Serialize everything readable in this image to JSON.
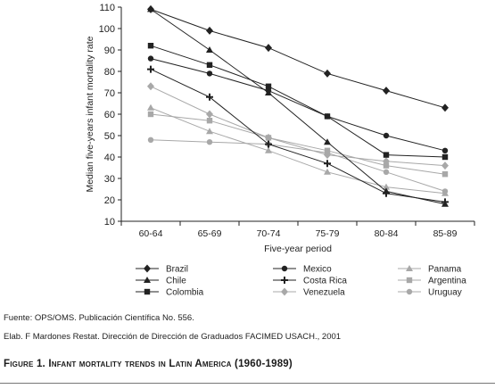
{
  "chart_data": {
    "type": "line",
    "categories": [
      "60-64",
      "65-69",
      "70-74",
      "75-79",
      "80-84",
      "85-89"
    ],
    "xlabel": "Five-year period",
    "ylabel": "Median five-years infant mortality rate",
    "ylim": [
      10,
      110
    ],
    "yticks": [
      10,
      20,
      30,
      40,
      50,
      60,
      70,
      80,
      90,
      100,
      110
    ],
    "grid": false,
    "legend_position": "bottom",
    "series": [
      {
        "name": "Brazil",
        "marker": "diamond",
        "color": "#222222",
        "values": [
          109,
          99,
          91,
          79,
          71,
          63
        ]
      },
      {
        "name": "Chile",
        "marker": "triangle",
        "color": "#222222",
        "values": [
          109,
          90,
          70,
          47,
          24,
          18
        ]
      },
      {
        "name": "Colombia",
        "marker": "square",
        "color": "#222222",
        "values": [
          92,
          83,
          73,
          59,
          41,
          40
        ]
      },
      {
        "name": "Mexico",
        "marker": "circle",
        "color": "#222222",
        "values": [
          86,
          79,
          71,
          59,
          50,
          43
        ]
      },
      {
        "name": "Costa Rica",
        "marker": "plus",
        "color": "#222222",
        "values": [
          81,
          68,
          46,
          37,
          23,
          19
        ]
      },
      {
        "name": "Venezuela",
        "marker": "diamond",
        "color": "#a8a8a8",
        "values": [
          73,
          60,
          49,
          41,
          38,
          36
        ]
      },
      {
        "name": "Panama",
        "marker": "triangle",
        "color": "#a8a8a8",
        "values": [
          63,
          52,
          43,
          33,
          26,
          23
        ]
      },
      {
        "name": "Argentina",
        "marker": "square",
        "color": "#a8a8a8",
        "values": [
          60,
          57,
          49,
          43,
          36,
          32
        ]
      },
      {
        "name": "Uruguay",
        "marker": "circle",
        "color": "#a8a8a8",
        "values": [
          48,
          47,
          46,
          42,
          33,
          24
        ]
      }
    ]
  },
  "source_line1": "Fuente: OPS/OMS. Publicación Científica No. 556.",
  "source_line2": "Elab. F Mardones Restat. Dirección de Dirección de Graduados FACIMED USACH., 2001",
  "figure_caption": "Figure 1. Infant mortality trends in Latin America (1960-1989)"
}
